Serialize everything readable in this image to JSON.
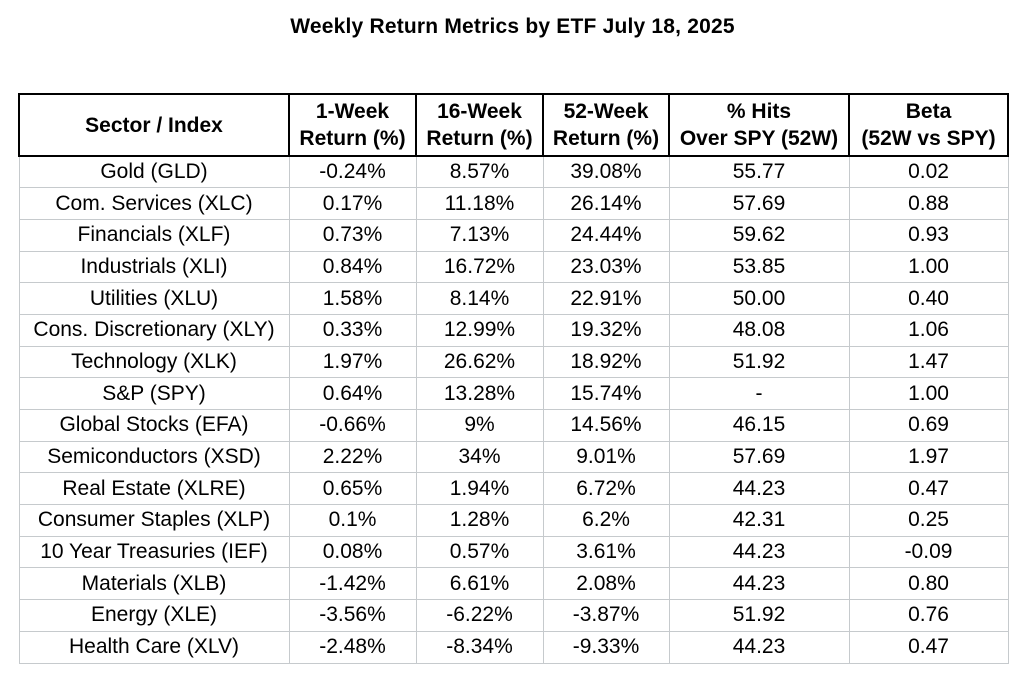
{
  "title": "Weekly Return Metrics by ETF July 18, 2025",
  "colors": {
    "background": "#ffffff",
    "text": "#000000",
    "header_border": "#000000",
    "grid_border": "#c6cacd"
  },
  "chart_data": {
    "type": "table",
    "title": "Weekly Return Metrics by ETF July 18, 2025",
    "legend_position": "none",
    "grid": true,
    "columns": [
      {
        "line1": "Sector / Index",
        "line2": ""
      },
      {
        "line1": "1-Week",
        "line2": "Return (%)"
      },
      {
        "line1": "16-Week",
        "line2": "Return (%)"
      },
      {
        "line1": "52-Week",
        "line2": "Return (%)"
      },
      {
        "line1": "% Hits",
        "line2": "Over SPY (52W)"
      },
      {
        "line1": "Beta",
        "line2": "(52W vs SPY)"
      }
    ],
    "rows": [
      [
        "Gold (GLD)",
        "-0.24%",
        "8.57%",
        "39.08%",
        "55.77",
        "0.02"
      ],
      [
        "Com. Services (XLC)",
        "0.17%",
        "11.18%",
        "26.14%",
        "57.69",
        "0.88"
      ],
      [
        "Financials (XLF)",
        "0.73%",
        "7.13%",
        "24.44%",
        "59.62",
        "0.93"
      ],
      [
        "Industrials (XLI)",
        "0.84%",
        "16.72%",
        "23.03%",
        "53.85",
        "1.00"
      ],
      [
        "Utilities (XLU)",
        "1.58%",
        "8.14%",
        "22.91%",
        "50.00",
        "0.40"
      ],
      [
        "Cons. Discretionary (XLY)",
        "0.33%",
        "12.99%",
        "19.32%",
        "48.08",
        "1.06"
      ],
      [
        "Technology (XLK)",
        "1.97%",
        "26.62%",
        "18.92%",
        "51.92",
        "1.47"
      ],
      [
        "S&P (SPY)",
        "0.64%",
        "13.28%",
        "15.74%",
        "-",
        "1.00"
      ],
      [
        "Global Stocks (EFA)",
        "-0.66%",
        "9%",
        "14.56%",
        "46.15",
        "0.69"
      ],
      [
        "Semiconductors (XSD)",
        "2.22%",
        "34%",
        "9.01%",
        "57.69",
        "1.97"
      ],
      [
        "Real Estate (XLRE)",
        "0.65%",
        "1.94%",
        "6.72%",
        "44.23",
        "0.47"
      ],
      [
        "Consumer Staples (XLP)",
        "0.1%",
        "1.28%",
        "6.2%",
        "42.31",
        "0.25"
      ],
      [
        "10 Year Treasuries (IEF)",
        "0.08%",
        "0.57%",
        "3.61%",
        "44.23",
        "-0.09"
      ],
      [
        "Materials (XLB)",
        "-1.42%",
        "6.61%",
        "2.08%",
        "44.23",
        "0.80"
      ],
      [
        "Energy (XLE)",
        "-3.56%",
        "-6.22%",
        "-3.87%",
        "51.92",
        "0.76"
      ],
      [
        "Health Care (XLV)",
        "-2.48%",
        "-8.34%",
        "-9.33%",
        "44.23",
        "0.47"
      ]
    ]
  }
}
